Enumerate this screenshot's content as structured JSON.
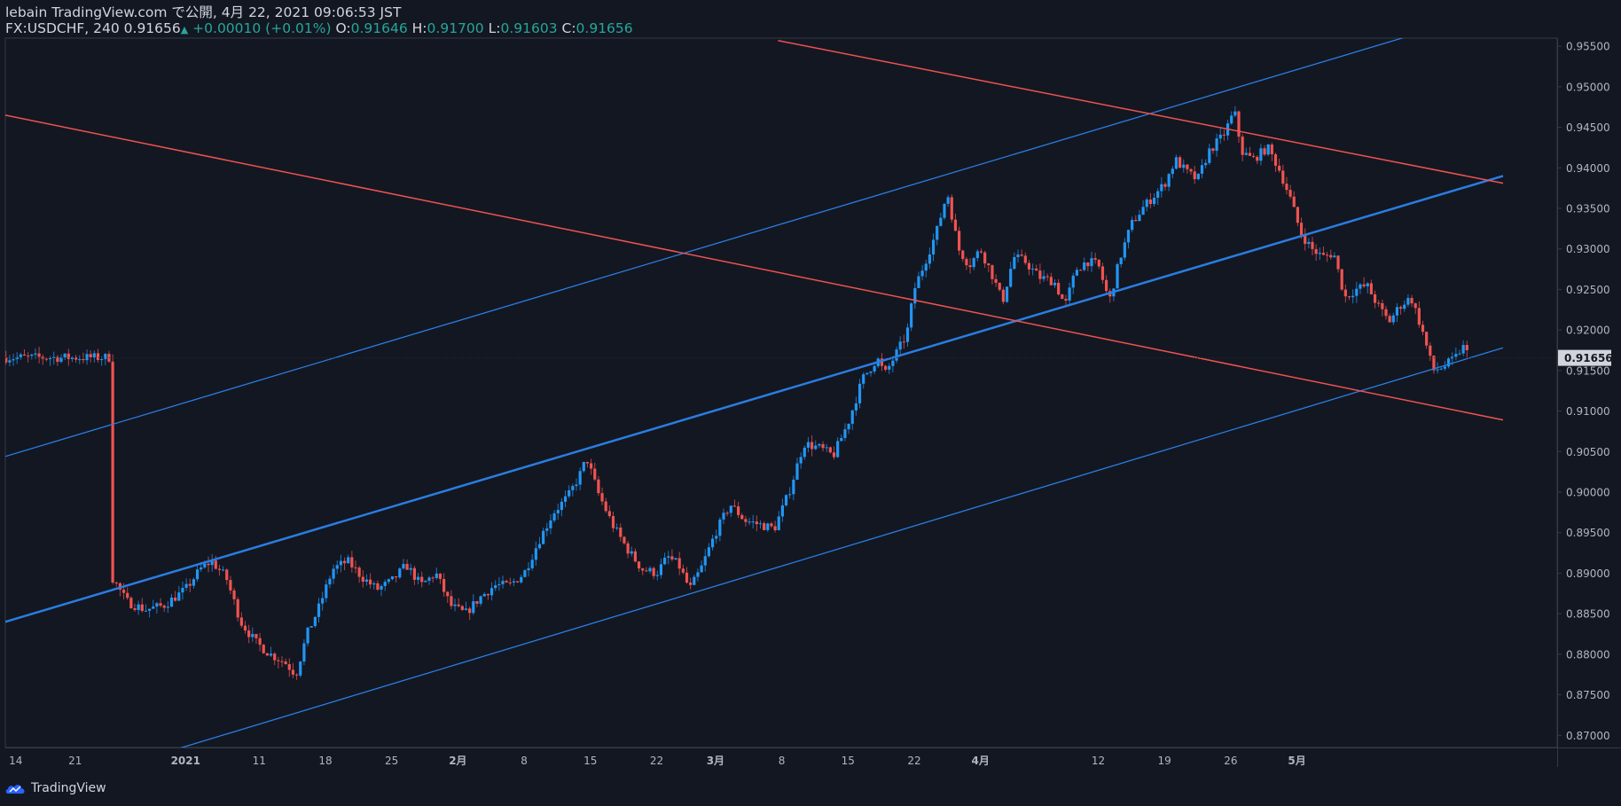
{
  "header": {
    "line1": "lebain TradingView.com で公開, 4月 22, 2021 09:06:53 JST",
    "symbol": "FX:USDCHF, 240",
    "last": "0.91656",
    "change": "+0.00010 (+0.01%)",
    "o_label": "O:",
    "o": "0.91646",
    "h_label": "H:",
    "h": "0.91700",
    "l_label": "L:",
    "l": "0.91603",
    "c_label": "C:",
    "c": "0.91656"
  },
  "footer": {
    "brand": "TradingView"
  },
  "colors": {
    "background": "#131722",
    "up": "#2196f3",
    "down": "#ef5350",
    "blue_line": "#2a7de1",
    "red_line": "#ef5350",
    "axis_text": "#b2b5be",
    "price_tag": "#d1d4dc"
  },
  "chart_data": {
    "type": "candlestick",
    "symbol": "FX:USDCHF",
    "timeframe": "240",
    "ylim": [
      0.8685,
      0.956
    ],
    "y_ticks": [
      "0.87000",
      "0.87500",
      "0.88000",
      "0.88500",
      "0.89000",
      "0.89500",
      "0.90000",
      "0.90500",
      "0.91000",
      "0.91500",
      "0.92000",
      "0.92500",
      "0.93000",
      "0.93500",
      "0.94000",
      "0.94500",
      "0.95000",
      "0.95500"
    ],
    "x_ticks": [
      "14",
      "21",
      "2021",
      "11",
      "18",
      "25",
      "2月",
      "8",
      "15",
      "22",
      "3月",
      "8",
      "15",
      "22",
      "4月",
      "12",
      "19",
      "26",
      "5月"
    ],
    "current_price": "0.91656",
    "close_path": [
      [
        14.0,
        0.8895
      ],
      [
        16.0,
        0.8865
      ],
      [
        18.5,
        0.8855
      ],
      [
        21.0,
        0.886
      ],
      [
        24.0,
        0.888
      ],
      [
        26.0,
        0.8905
      ],
      [
        27.5,
        0.8915
      ],
      [
        29.5,
        0.8895
      ],
      [
        31.5,
        0.884
      ],
      [
        33.5,
        0.8815
      ],
      [
        35.5,
        0.88
      ],
      [
        37.5,
        0.879
      ],
      [
        39.0,
        0.8775
      ],
      [
        40.5,
        0.8825
      ],
      [
        42.0,
        0.8855
      ],
      [
        44.0,
        0.8905
      ],
      [
        46.0,
        0.8915
      ],
      [
        48.0,
        0.8895
      ],
      [
        50.0,
        0.888
      ],
      [
        52.0,
        0.889
      ],
      [
        54.0,
        0.891
      ],
      [
        56.0,
        0.8885
      ],
      [
        58.0,
        0.89
      ],
      [
        60.0,
        0.886
      ],
      [
        62.0,
        0.885
      ],
      [
        64.0,
        0.887
      ],
      [
        66.0,
        0.8885
      ],
      [
        68.0,
        0.8885
      ],
      [
        70.0,
        0.89
      ],
      [
        72.0,
        0.894
      ],
      [
        74.0,
        0.8975
      ],
      [
        76.0,
        0.8995
      ],
      [
        77.5,
        0.902
      ],
      [
        78.5,
        0.9042
      ],
      [
        80.0,
        0.9
      ],
      [
        82.0,
        0.896
      ],
      [
        84.0,
        0.893
      ],
      [
        86.0,
        0.8905
      ],
      [
        88.0,
        0.89
      ],
      [
        89.5,
        0.892
      ],
      [
        91.0,
        0.891
      ],
      [
        92.5,
        0.888
      ],
      [
        94.0,
        0.8905
      ],
      [
        96.0,
        0.895
      ],
      [
        98.0,
        0.8985
      ],
      [
        100.0,
        0.8965
      ],
      [
        102.0,
        0.896
      ],
      [
        104.0,
        0.8955
      ],
      [
        106.0,
        0.9
      ],
      [
        108.0,
        0.906
      ],
      [
        110.0,
        0.9055
      ],
      [
        112.0,
        0.9045
      ],
      [
        114.0,
        0.9085
      ],
      [
        116.0,
        0.914
      ],
      [
        118.0,
        0.9165
      ],
      [
        119.0,
        0.9145
      ],
      [
        120.5,
        0.917
      ],
      [
        122.0,
        0.9195
      ],
      [
        123.0,
        0.925
      ],
      [
        124.5,
        0.9285
      ],
      [
        126.0,
        0.932
      ],
      [
        127.5,
        0.937
      ],
      [
        129.0,
        0.93
      ],
      [
        130.5,
        0.928
      ],
      [
        132.0,
        0.93
      ],
      [
        133.5,
        0.927
      ],
      [
        135.0,
        0.9235
      ],
      [
        136.5,
        0.929
      ],
      [
        138.0,
        0.9285
      ],
      [
        140.0,
        0.9265
      ],
      [
        142.0,
        0.926
      ],
      [
        143.5,
        0.923
      ],
      [
        145.0,
        0.9275
      ],
      [
        146.5,
        0.9285
      ],
      [
        148.0,
        0.928
      ],
      [
        149.5,
        0.9235
      ],
      [
        151.0,
        0.929
      ],
      [
        152.5,
        0.933
      ],
      [
        154.0,
        0.935
      ],
      [
        155.5,
        0.9365
      ],
      [
        157.0,
        0.938
      ],
      [
        158.5,
        0.941
      ],
      [
        160.0,
        0.9395
      ],
      [
        161.5,
        0.9385
      ],
      [
        163.0,
        0.942
      ],
      [
        165.0,
        0.944
      ],
      [
        166.5,
        0.947
      ],
      [
        167.5,
        0.942
      ],
      [
        169.0,
        0.941
      ],
      [
        171.0,
        0.9425
      ],
      [
        172.5,
        0.94
      ],
      [
        174.0,
        0.9365
      ],
      [
        175.5,
        0.932
      ],
      [
        177.0,
        0.93
      ],
      [
        178.5,
        0.929
      ],
      [
        180.0,
        0.9295
      ],
      [
        181.5,
        0.924
      ],
      [
        183.0,
        0.925
      ],
      [
        184.5,
        0.9255
      ],
      [
        186.0,
        0.923
      ],
      [
        187.5,
        0.921
      ],
      [
        189.0,
        0.923
      ],
      [
        190.5,
        0.924
      ],
      [
        192.0,
        0.92
      ],
      [
        193.5,
        0.915
      ],
      [
        195.0,
        0.9155
      ],
      [
        196.5,
        0.9165
      ],
      [
        197.5,
        0.918
      ],
      [
        198.5,
        0.9166
      ]
    ],
    "trendlines": [
      {
        "color": "blue",
        "width": 1.3,
        "points": [
          [
            -0.5,
            0.9044
          ],
          [
            190.0,
            0.9562
          ]
        ]
      },
      {
        "color": "blue",
        "width": 2.5,
        "points": [
          [
            -0.5,
            0.884
          ],
          [
            203.0,
            0.939
          ]
        ]
      },
      {
        "color": "blue",
        "width": 1.3,
        "points": [
          [
            -0.5,
            0.8619
          ],
          [
            203.0,
            0.9178
          ]
        ]
      },
      {
        "color": "red",
        "width": 1.5,
        "points": [
          [
            -0.5,
            0.9465
          ],
          [
            203.0,
            0.9089
          ]
        ]
      },
      {
        "color": "red",
        "width": 1.5,
        "points": [
          [
            104.5,
            0.9557
          ],
          [
            203.0,
            0.9381
          ]
        ]
      }
    ]
  }
}
